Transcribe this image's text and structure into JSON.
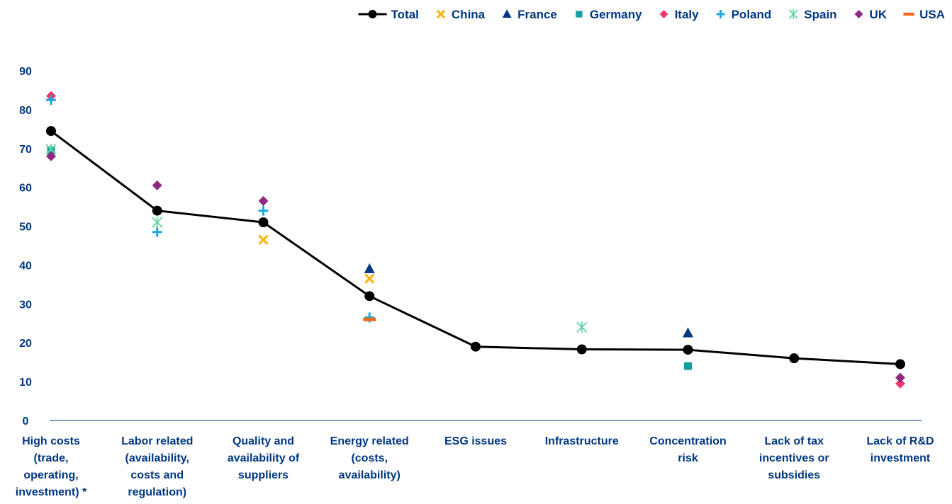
{
  "chart_data": {
    "type": "line",
    "title": "",
    "xlabel": "",
    "ylabel": "",
    "ylim": [
      0,
      90
    ],
    "yticks": [
      0,
      10,
      20,
      30,
      40,
      50,
      60,
      70,
      80,
      90
    ],
    "grid": false,
    "legend_position": "top-right",
    "categories": [
      [
        "High costs",
        "(trade,",
        "operating,",
        "investment) *"
      ],
      [
        "Labor related",
        "(availability,",
        "costs and",
        "regulation)"
      ],
      [
        "Quality and",
        "availability of",
        "suppliers"
      ],
      [
        "Energy related",
        "(costs,",
        "availability)"
      ],
      [
        "ESG issues"
      ],
      [
        "Infrastructure"
      ],
      [
        "Concentration",
        "risk"
      ],
      [
        "Lack of tax",
        "incentives or",
        "subsidies"
      ],
      [
        "Lack of R&D",
        "investment"
      ]
    ],
    "series": [
      {
        "name": "Total",
        "marker": "line-dot",
        "color": "#000000",
        "values": [
          74.5,
          54,
          51,
          32,
          19,
          18.3,
          18.2,
          16,
          14.5
        ]
      },
      {
        "name": "China",
        "marker": "x",
        "color": "#F7B500",
        "values": [
          null,
          null,
          46.5,
          36.5,
          null,
          null,
          null,
          null,
          null
        ]
      },
      {
        "name": "France",
        "marker": "triangle",
        "color": "#003781",
        "values": [
          null,
          null,
          null,
          39,
          null,
          null,
          22.5,
          null,
          null
        ]
      },
      {
        "name": "Germany",
        "marker": "square",
        "color": "#13A0A0",
        "values": [
          69.5,
          null,
          null,
          null,
          null,
          null,
          14,
          null,
          null
        ]
      },
      {
        "name": "Italy",
        "marker": "diamond",
        "color": "#F0386E",
        "values": [
          83.5,
          null,
          null,
          null,
          null,
          null,
          null,
          null,
          9.5
        ]
      },
      {
        "name": "Poland",
        "marker": "plus",
        "color": "#1DA8E0",
        "values": [
          82.5,
          48.5,
          54,
          26.5,
          null,
          null,
          null,
          null,
          null
        ]
      },
      {
        "name": "Spain",
        "marker": "asterisk",
        "color": "#63D4A0",
        "values": [
          69.8,
          51,
          null,
          null,
          null,
          24,
          null,
          null,
          null
        ]
      },
      {
        "name": "UK",
        "marker": "diamond",
        "color": "#8E2B7E",
        "values": [
          68,
          60.5,
          56.5,
          null,
          null,
          null,
          null,
          null,
          11
        ]
      },
      {
        "name": "USA",
        "marker": "dash",
        "color": "#F26B1D",
        "values": [
          null,
          null,
          null,
          26,
          null,
          null,
          null,
          null,
          null
        ]
      }
    ]
  }
}
